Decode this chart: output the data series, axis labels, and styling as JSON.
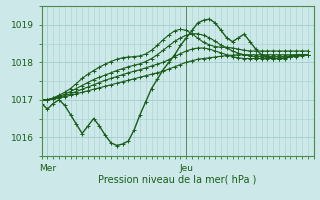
{
  "background_color": "#cce8e8",
  "grid_color": "#a8d0d0",
  "line_color": "#1a5c1a",
  "text_color": "#1a5c1a",
  "axis_color": "#4a8a4a",
  "xlabel": "Pression niveau de la mer( hPa )",
  "ylim": [
    1015.5,
    1019.5
  ],
  "xlim": [
    0,
    47
  ],
  "yticks": [
    1016,
    1017,
    1018,
    1019
  ],
  "xtick_positions": [
    1,
    25
  ],
  "xtick_labels": [
    "Mer",
    "Jeu"
  ],
  "vline_x": 25,
  "n_points": 47,
  "series": [
    [
      1016.9,
      1016.75,
      1016.9,
      1017.0,
      1016.85,
      1016.6,
      1016.35,
      1016.1,
      1016.3,
      1016.5,
      1016.3,
      1016.05,
      1015.85,
      1015.78,
      1015.82,
      1015.9,
      1016.2,
      1016.6,
      1016.95,
      1017.3,
      1017.55,
      1017.8,
      1018.0,
      1018.2,
      1018.45,
      1018.65,
      1018.85,
      1019.05,
      1019.12,
      1019.15,
      1019.05,
      1018.85,
      1018.65,
      1018.55,
      1018.65,
      1018.75,
      1018.55,
      1018.35,
      1018.2,
      1018.15,
      1018.1,
      1018.1,
      1018.1,
      1018.15,
      1018.2,
      1018.2,
      1018.2
    ],
    [
      1017.0,
      1017.0,
      1017.02,
      1017.05,
      1017.08,
      1017.12,
      1017.16,
      1017.2,
      1017.24,
      1017.28,
      1017.32,
      1017.36,
      1017.4,
      1017.44,
      1017.48,
      1017.52,
      1017.56,
      1017.6,
      1017.64,
      1017.68,
      1017.72,
      1017.76,
      1017.82,
      1017.88,
      1017.94,
      1018.0,
      1018.04,
      1018.08,
      1018.1,
      1018.12,
      1018.14,
      1018.16,
      1018.18,
      1018.19,
      1018.2,
      1018.2,
      1018.2,
      1018.2,
      1018.2,
      1018.2,
      1018.2,
      1018.2,
      1018.2,
      1018.2,
      1018.2,
      1018.2,
      1018.2
    ],
    [
      1017.0,
      1017.0,
      1017.03,
      1017.07,
      1017.11,
      1017.16,
      1017.22,
      1017.28,
      1017.34,
      1017.4,
      1017.46,
      1017.52,
      1017.57,
      1017.62,
      1017.67,
      1017.72,
      1017.76,
      1017.8,
      1017.85,
      1017.9,
      1017.95,
      1018.0,
      1018.07,
      1018.15,
      1018.23,
      1018.3,
      1018.35,
      1018.38,
      1018.38,
      1018.35,
      1018.3,
      1018.25,
      1018.2,
      1018.15,
      1018.12,
      1018.1,
      1018.1,
      1018.1,
      1018.1,
      1018.1,
      1018.1,
      1018.1,
      1018.12,
      1018.15,
      1018.18,
      1018.2,
      1018.2
    ],
    [
      1017.0,
      1017.0,
      1017.04,
      1017.09,
      1017.15,
      1017.22,
      1017.3,
      1017.38,
      1017.46,
      1017.54,
      1017.6,
      1017.66,
      1017.72,
      1017.78,
      1017.83,
      1017.88,
      1017.92,
      1017.96,
      1018.02,
      1018.1,
      1018.2,
      1018.32,
      1018.44,
      1018.56,
      1018.65,
      1018.72,
      1018.76,
      1018.76,
      1018.72,
      1018.65,
      1018.56,
      1018.46,
      1018.38,
      1018.3,
      1018.24,
      1018.2,
      1018.17,
      1018.15,
      1018.15,
      1018.15,
      1018.15,
      1018.15,
      1018.15,
      1018.15,
      1018.15,
      1018.18,
      1018.2
    ],
    [
      1017.0,
      1017.0,
      1017.05,
      1017.12,
      1017.2,
      1017.3,
      1017.43,
      1017.57,
      1017.68,
      1017.78,
      1017.87,
      1017.95,
      1018.02,
      1018.08,
      1018.12,
      1018.14,
      1018.15,
      1018.17,
      1018.22,
      1018.32,
      1018.45,
      1018.6,
      1018.73,
      1018.84,
      1018.88,
      1018.85,
      1018.76,
      1018.64,
      1018.53,
      1018.46,
      1018.42,
      1018.4,
      1018.4,
      1018.38,
      1018.35,
      1018.32,
      1018.3,
      1018.3,
      1018.3,
      1018.3,
      1018.3,
      1018.3,
      1018.3,
      1018.3,
      1018.3,
      1018.3,
      1018.3
    ]
  ]
}
